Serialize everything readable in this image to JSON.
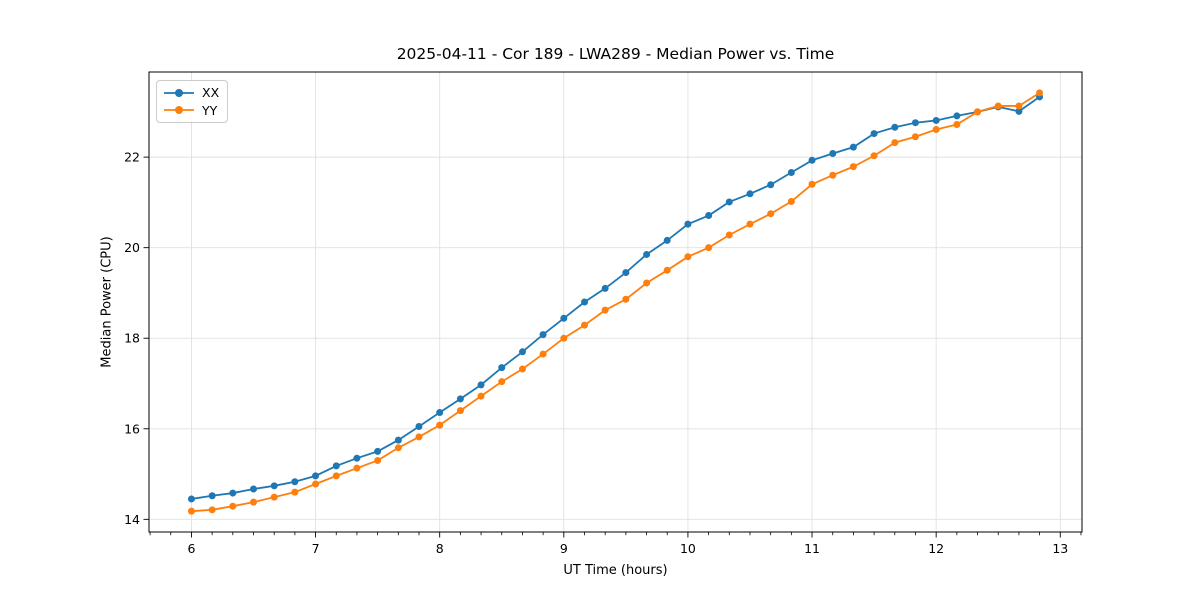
{
  "chart_data": {
    "type": "line",
    "title": "2025-04-11 - Cor 189 - LWA289 - Median Power vs. Time",
    "xlabel": "UT Time (hours)",
    "ylabel": "Median Power (CPU)",
    "legend_position": "upper-left",
    "grid": "major",
    "grid_color": "#e0e0e0",
    "spine_color": "#000000",
    "xlim": [
      5.658,
      13.175
    ],
    "ylim": [
      13.72,
      23.88
    ],
    "xticks": [
      6,
      7,
      8,
      9,
      10,
      11,
      12,
      13
    ],
    "yticks": [
      14,
      16,
      18,
      20,
      22
    ],
    "x_minor_step": 0.16667,
    "x": [
      6.0,
      6.167,
      6.333,
      6.5,
      6.667,
      6.833,
      7.0,
      7.167,
      7.333,
      7.5,
      7.667,
      7.833,
      8.0,
      8.167,
      8.333,
      8.5,
      8.667,
      8.833,
      9.0,
      9.167,
      9.333,
      9.5,
      9.667,
      9.833,
      10.0,
      10.167,
      10.333,
      10.5,
      10.667,
      10.833,
      11.0,
      11.167,
      11.333,
      11.5,
      11.667,
      11.833,
      12.0,
      12.167,
      12.333,
      12.5,
      12.667,
      12.833
    ],
    "series": [
      {
        "name": "XX",
        "color": "#1f77b4",
        "values": [
          14.45,
          14.52,
          14.58,
          14.67,
          14.74,
          14.83,
          14.96,
          15.18,
          15.35,
          15.5,
          15.75,
          16.05,
          16.36,
          16.66,
          16.97,
          17.35,
          17.7,
          18.08,
          18.44,
          18.8,
          19.1,
          19.45,
          19.85,
          20.16,
          20.52,
          20.71,
          21.01,
          21.19,
          21.39,
          21.66,
          21.93,
          22.08,
          22.22,
          22.52,
          22.66,
          22.76,
          22.81,
          22.91,
          23.0,
          23.11,
          23.01,
          23.33
        ]
      },
      {
        "name": "YY",
        "color": "#ff7f0e",
        "values": [
          14.18,
          14.21,
          14.29,
          14.38,
          14.49,
          14.6,
          14.78,
          14.96,
          15.13,
          15.3,
          15.58,
          15.82,
          16.08,
          16.4,
          16.72,
          17.04,
          17.32,
          17.65,
          18.0,
          18.29,
          18.62,
          18.86,
          19.22,
          19.5,
          19.8,
          20.0,
          20.28,
          20.52,
          20.75,
          21.02,
          21.4,
          21.6,
          21.79,
          22.03,
          22.32,
          22.45,
          22.61,
          22.72,
          23.0,
          23.13,
          23.13,
          23.42
        ]
      }
    ]
  }
}
